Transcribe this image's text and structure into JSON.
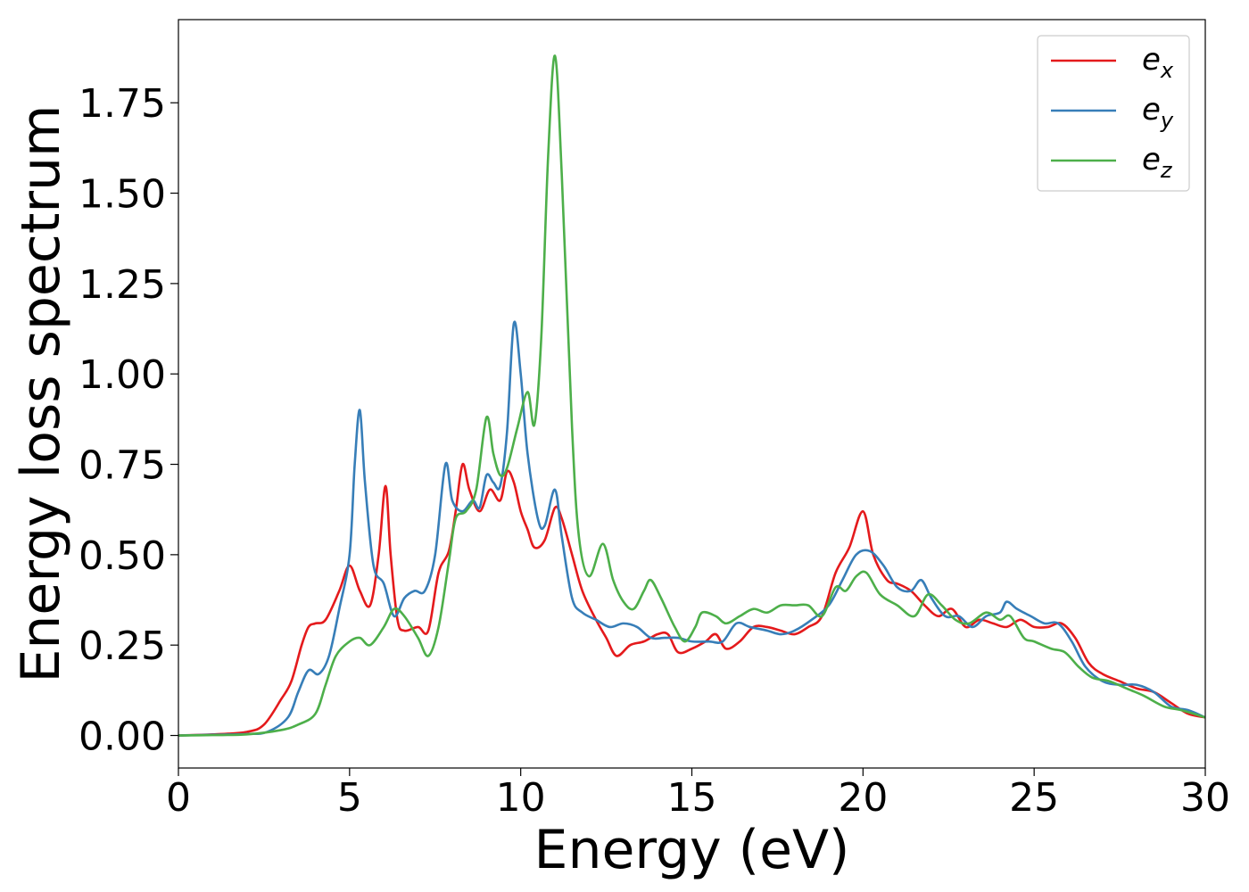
{
  "chart_data": {
    "type": "line",
    "title": "",
    "xlabel": "Energy (eV)",
    "ylabel": "Energy loss spectrum",
    "xlim": [
      0,
      30
    ],
    "ylim": [
      -0.09,
      1.98
    ],
    "xticks": [
      0,
      5,
      10,
      15,
      20,
      25,
      30
    ],
    "xtick_labels": [
      "0",
      "5",
      "10",
      "15",
      "20",
      "25",
      "30"
    ],
    "yticks": [
      0.0,
      0.25,
      0.5,
      0.75,
      1.0,
      1.25,
      1.5,
      1.75
    ],
    "ytick_labels": [
      "0.00",
      "0.25",
      "0.50",
      "0.75",
      "1.00",
      "1.25",
      "1.50",
      "1.75"
    ],
    "grid": false,
    "legend_position": "top-right",
    "series": [
      {
        "name": "e_x",
        "legend_base": "e",
        "legend_sub": "x",
        "color": "#e41a1c",
        "points": [
          [
            0,
            0
          ],
          [
            1,
            0.003
          ],
          [
            2,
            0.01
          ],
          [
            2.5,
            0.03
          ],
          [
            3,
            0.1
          ],
          [
            3.3,
            0.15
          ],
          [
            3.6,
            0.25
          ],
          [
            3.8,
            0.3
          ],
          [
            4.0,
            0.31
          ],
          [
            4.3,
            0.32
          ],
          [
            4.7,
            0.4
          ],
          [
            5.0,
            0.47
          ],
          [
            5.3,
            0.4
          ],
          [
            5.6,
            0.36
          ],
          [
            5.85,
            0.5
          ],
          [
            6.05,
            0.69
          ],
          [
            6.2,
            0.5
          ],
          [
            6.4,
            0.32
          ],
          [
            6.6,
            0.29
          ],
          [
            7.0,
            0.3
          ],
          [
            7.3,
            0.29
          ],
          [
            7.6,
            0.45
          ],
          [
            7.9,
            0.51
          ],
          [
            8.1,
            0.62
          ],
          [
            8.3,
            0.75
          ],
          [
            8.5,
            0.68
          ],
          [
            8.8,
            0.62
          ],
          [
            9.1,
            0.68
          ],
          [
            9.4,
            0.65
          ],
          [
            9.6,
            0.73
          ],
          [
            9.8,
            0.7
          ],
          [
            10.0,
            0.62
          ],
          [
            10.2,
            0.57
          ],
          [
            10.4,
            0.52
          ],
          [
            10.7,
            0.54
          ],
          [
            11.0,
            0.63
          ],
          [
            11.2,
            0.6
          ],
          [
            11.5,
            0.5
          ],
          [
            11.8,
            0.4
          ],
          [
            12.2,
            0.32
          ],
          [
            12.5,
            0.27
          ],
          [
            12.8,
            0.22
          ],
          [
            13.2,
            0.25
          ],
          [
            13.6,
            0.26
          ],
          [
            14.0,
            0.28
          ],
          [
            14.3,
            0.28
          ],
          [
            14.6,
            0.23
          ],
          [
            15.0,
            0.24
          ],
          [
            15.4,
            0.26
          ],
          [
            15.7,
            0.28
          ],
          [
            16.0,
            0.24
          ],
          [
            16.4,
            0.26
          ],
          [
            16.8,
            0.3
          ],
          [
            17.2,
            0.3
          ],
          [
            17.6,
            0.29
          ],
          [
            18.0,
            0.28
          ],
          [
            18.4,
            0.3
          ],
          [
            18.8,
            0.33
          ],
          [
            19.2,
            0.45
          ],
          [
            19.6,
            0.52
          ],
          [
            20.0,
            0.62
          ],
          [
            20.3,
            0.5
          ],
          [
            20.7,
            0.43
          ],
          [
            21.0,
            0.42
          ],
          [
            21.4,
            0.4
          ],
          [
            21.8,
            0.36
          ],
          [
            22.2,
            0.33
          ],
          [
            22.6,
            0.35
          ],
          [
            23.0,
            0.3
          ],
          [
            23.4,
            0.32
          ],
          [
            23.8,
            0.31
          ],
          [
            24.2,
            0.3
          ],
          [
            24.6,
            0.32
          ],
          [
            25.0,
            0.3
          ],
          [
            25.4,
            0.3
          ],
          [
            25.8,
            0.31
          ],
          [
            26.2,
            0.27
          ],
          [
            26.6,
            0.2
          ],
          [
            27.0,
            0.17
          ],
          [
            27.5,
            0.15
          ],
          [
            28.0,
            0.13
          ],
          [
            28.5,
            0.12
          ],
          [
            29.0,
            0.09
          ],
          [
            29.5,
            0.06
          ],
          [
            30.0,
            0.05
          ]
        ]
      },
      {
        "name": "e_y",
        "legend_base": "e",
        "legend_sub": "y",
        "color": "#377eb8",
        "points": [
          [
            0,
            0
          ],
          [
            1,
            0.002
          ],
          [
            2,
            0.004
          ],
          [
            2.6,
            0.01
          ],
          [
            3.2,
            0.05
          ],
          [
            3.5,
            0.12
          ],
          [
            3.8,
            0.18
          ],
          [
            4.1,
            0.17
          ],
          [
            4.4,
            0.22
          ],
          [
            4.7,
            0.35
          ],
          [
            5.0,
            0.5
          ],
          [
            5.15,
            0.75
          ],
          [
            5.3,
            0.9
          ],
          [
            5.45,
            0.7
          ],
          [
            5.7,
            0.47
          ],
          [
            6.0,
            0.42
          ],
          [
            6.3,
            0.33
          ],
          [
            6.6,
            0.38
          ],
          [
            6.9,
            0.4
          ],
          [
            7.2,
            0.4
          ],
          [
            7.5,
            0.5
          ],
          [
            7.8,
            0.75
          ],
          [
            8.0,
            0.65
          ],
          [
            8.3,
            0.62
          ],
          [
            8.6,
            0.65
          ],
          [
            8.8,
            0.63
          ],
          [
            9.0,
            0.72
          ],
          [
            9.2,
            0.7
          ],
          [
            9.4,
            0.69
          ],
          [
            9.6,
            0.84
          ],
          [
            9.8,
            1.14
          ],
          [
            10.0,
            1.0
          ],
          [
            10.2,
            0.78
          ],
          [
            10.5,
            0.6
          ],
          [
            10.7,
            0.58
          ],
          [
            11.0,
            0.68
          ],
          [
            11.2,
            0.55
          ],
          [
            11.5,
            0.38
          ],
          [
            11.8,
            0.34
          ],
          [
            12.2,
            0.32
          ],
          [
            12.6,
            0.3
          ],
          [
            13.0,
            0.31
          ],
          [
            13.4,
            0.3
          ],
          [
            13.8,
            0.27
          ],
          [
            14.2,
            0.27
          ],
          [
            14.6,
            0.27
          ],
          [
            15.0,
            0.26
          ],
          [
            15.5,
            0.26
          ],
          [
            15.9,
            0.26
          ],
          [
            16.3,
            0.31
          ],
          [
            16.7,
            0.3
          ],
          [
            17.2,
            0.29
          ],
          [
            17.6,
            0.28
          ],
          [
            18.0,
            0.29
          ],
          [
            18.5,
            0.32
          ],
          [
            19.0,
            0.36
          ],
          [
            19.4,
            0.43
          ],
          [
            19.8,
            0.5
          ],
          [
            20.2,
            0.51
          ],
          [
            20.6,
            0.47
          ],
          [
            21.0,
            0.41
          ],
          [
            21.4,
            0.4
          ],
          [
            21.7,
            0.43
          ],
          [
            22.0,
            0.38
          ],
          [
            22.4,
            0.33
          ],
          [
            22.8,
            0.33
          ],
          [
            23.2,
            0.3
          ],
          [
            23.6,
            0.33
          ],
          [
            24.0,
            0.34
          ],
          [
            24.2,
            0.37
          ],
          [
            24.5,
            0.35
          ],
          [
            24.9,
            0.33
          ],
          [
            25.3,
            0.31
          ],
          [
            25.7,
            0.31
          ],
          [
            26.1,
            0.26
          ],
          [
            26.5,
            0.19
          ],
          [
            27.0,
            0.15
          ],
          [
            27.5,
            0.14
          ],
          [
            28.0,
            0.14
          ],
          [
            28.5,
            0.12
          ],
          [
            29.0,
            0.08
          ],
          [
            29.5,
            0.07
          ],
          [
            30.0,
            0.05
          ]
        ]
      },
      {
        "name": "e_z",
        "legend_base": "e",
        "legend_sub": "z",
        "color": "#4daf4a",
        "points": [
          [
            0,
            0
          ],
          [
            1,
            0.001
          ],
          [
            2,
            0.003
          ],
          [
            3,
            0.015
          ],
          [
            3.5,
            0.03
          ],
          [
            4.0,
            0.06
          ],
          [
            4.3,
            0.14
          ],
          [
            4.6,
            0.22
          ],
          [
            5.0,
            0.26
          ],
          [
            5.3,
            0.27
          ],
          [
            5.6,
            0.25
          ],
          [
            6.0,
            0.3
          ],
          [
            6.3,
            0.35
          ],
          [
            6.6,
            0.33
          ],
          [
            7.0,
            0.27
          ],
          [
            7.3,
            0.22
          ],
          [
            7.6,
            0.3
          ],
          [
            7.9,
            0.48
          ],
          [
            8.1,
            0.6
          ],
          [
            8.4,
            0.62
          ],
          [
            8.7,
            0.68
          ],
          [
            9.0,
            0.88
          ],
          [
            9.2,
            0.78
          ],
          [
            9.4,
            0.72
          ],
          [
            9.6,
            0.74
          ],
          [
            9.9,
            0.85
          ],
          [
            10.2,
            0.95
          ],
          [
            10.4,
            0.86
          ],
          [
            10.6,
            1.1
          ],
          [
            10.8,
            1.6
          ],
          [
            11.0,
            1.88
          ],
          [
            11.2,
            1.55
          ],
          [
            11.5,
            0.85
          ],
          [
            11.7,
            0.55
          ],
          [
            12.0,
            0.44
          ],
          [
            12.4,
            0.53
          ],
          [
            12.7,
            0.43
          ],
          [
            13.0,
            0.37
          ],
          [
            13.3,
            0.35
          ],
          [
            13.6,
            0.4
          ],
          [
            13.8,
            0.43
          ],
          [
            14.1,
            0.38
          ],
          [
            14.5,
            0.3
          ],
          [
            14.8,
            0.26
          ],
          [
            15.1,
            0.3
          ],
          [
            15.3,
            0.34
          ],
          [
            15.7,
            0.33
          ],
          [
            16.0,
            0.31
          ],
          [
            16.4,
            0.33
          ],
          [
            16.8,
            0.35
          ],
          [
            17.2,
            0.34
          ],
          [
            17.6,
            0.36
          ],
          [
            18.0,
            0.36
          ],
          [
            18.4,
            0.36
          ],
          [
            18.8,
            0.33
          ],
          [
            19.2,
            0.41
          ],
          [
            19.5,
            0.4
          ],
          [
            19.8,
            0.44
          ],
          [
            20.1,
            0.45
          ],
          [
            20.5,
            0.39
          ],
          [
            21.0,
            0.36
          ],
          [
            21.5,
            0.33
          ],
          [
            21.9,
            0.39
          ],
          [
            22.3,
            0.36
          ],
          [
            22.7,
            0.32
          ],
          [
            23.1,
            0.31
          ],
          [
            23.6,
            0.34
          ],
          [
            24.0,
            0.32
          ],
          [
            24.3,
            0.33
          ],
          [
            24.7,
            0.27
          ],
          [
            25.0,
            0.26
          ],
          [
            25.5,
            0.24
          ],
          [
            25.9,
            0.23
          ],
          [
            26.3,
            0.19
          ],
          [
            26.7,
            0.16
          ],
          [
            27.2,
            0.15
          ],
          [
            27.7,
            0.13
          ],
          [
            28.2,
            0.11
          ],
          [
            28.8,
            0.08
          ],
          [
            29.3,
            0.07
          ],
          [
            30.0,
            0.05
          ]
        ]
      }
    ]
  }
}
